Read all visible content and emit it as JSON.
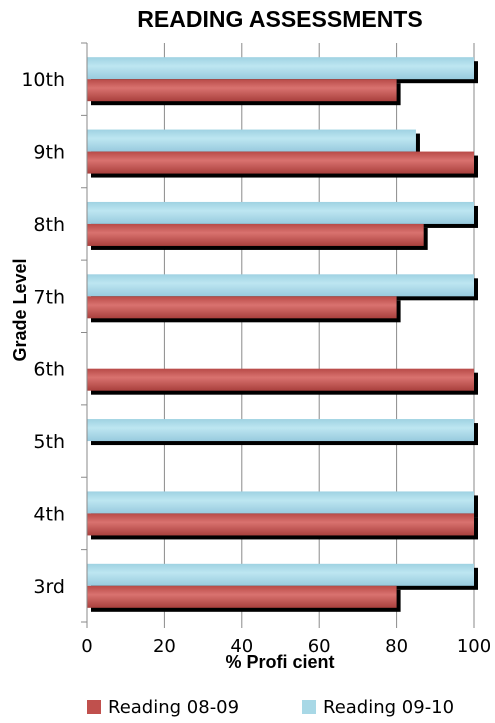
{
  "chart_data": {
    "type": "bar",
    "orientation": "horizontal",
    "title": "READING ASSESSMENTS",
    "xlabel": "% Profi cient",
    "ylabel": "Grade Level",
    "categories": [
      "10th",
      "9th",
      "8th",
      "7th",
      "6th",
      "5th",
      "4th",
      "3rd"
    ],
    "series": [
      {
        "name": "Reading 08-09",
        "color": "#c0504d",
        "values": [
          80,
          100,
          87,
          80,
          100,
          null,
          100,
          80
        ]
      },
      {
        "name": "Reading 09-10",
        "color": "#a8d8e6",
        "values": [
          100,
          85,
          100,
          100,
          null,
          100,
          100,
          100
        ]
      }
    ],
    "xlim": [
      0,
      100
    ],
    "xticks": [
      0,
      20,
      40,
      60,
      80,
      100
    ],
    "grid": "vertical",
    "legend_position": "bottom"
  }
}
